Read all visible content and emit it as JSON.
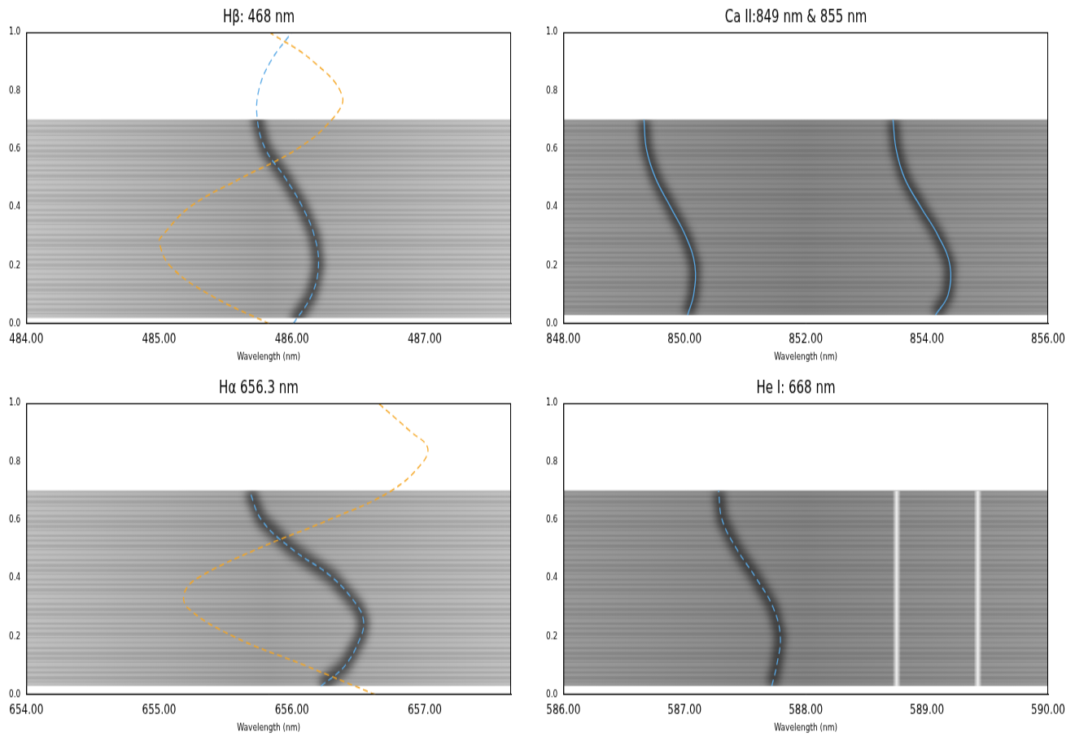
{
  "chart_data": [
    {
      "type": "line",
      "title": "Hβ: 468 nm",
      "x_label": "Wavelength (nm)",
      "xlim": [
        484,
        487.65
      ],
      "ylim": [
        0,
        1
      ],
      "xticks": [
        {
          "value": 484,
          "label": "484.00"
        },
        {
          "value": 485,
          "label": "485.00"
        },
        {
          "value": 486,
          "label": "486.00"
        },
        {
          "value": 487,
          "label": "487.00"
        }
      ],
      "yticks": [
        {
          "value": 0,
          "label": "0.0"
        },
        {
          "value": 0.2,
          "label": "0.2"
        },
        {
          "value": 0.4,
          "label": "0.4"
        },
        {
          "value": 0.6,
          "label": "0.6"
        },
        {
          "value": 0.8,
          "label": "0.8"
        },
        {
          "value": 1,
          "label": "1.0"
        }
      ],
      "grid": false,
      "image_extent": {
        "x": [
          484,
          487.65
        ],
        "y": [
          0.02,
          0.7
        ]
      },
      "series": [
        {
          "color": "#5aa9e6",
          "line_style": "dashed",
          "x": [
            486.01,
            486.15,
            486.2,
            486.17,
            486.08,
            485.95,
            485.8,
            485.74,
            485.75,
            485.84,
            486.0
          ],
          "y": [
            0,
            0.1,
            0.2,
            0.3,
            0.4,
            0.5,
            0.6,
            0.7,
            0.8,
            0.9,
            1
          ]
        },
        {
          "color": "#f5a623",
          "line_style": "dashed",
          "x": [
            485.83,
            485.38,
            485.08,
            485.0,
            485.02,
            485.23,
            485.62,
            486.04,
            486.3,
            486.38,
            486.16,
            485.83
          ],
          "y": [
            0,
            0.1,
            0.2,
            0.28,
            0.3,
            0.4,
            0.5,
            0.6,
            0.7,
            0.78,
            0.9,
            1
          ]
        }
      ]
    },
    {
      "type": "line",
      "title": "Ca II:849 nm & 855 nm",
      "x_label": "Wavelength (nm)",
      "xlim": [
        848,
        856
      ],
      "ylim": [
        0,
        1
      ],
      "xticks": [
        {
          "value": 848,
          "label": "848.00"
        },
        {
          "value": 850,
          "label": "850.00"
        },
        {
          "value": 852,
          "label": "852.00"
        },
        {
          "value": 854,
          "label": "854.00"
        },
        {
          "value": 856,
          "label": "856.00"
        }
      ],
      "yticks": [
        {
          "value": 0,
          "label": "0.0"
        },
        {
          "value": 0.2,
          "label": "0.2"
        },
        {
          "value": 0.4,
          "label": "0.4"
        },
        {
          "value": 0.6,
          "label": "0.6"
        },
        {
          "value": 0.8,
          "label": "0.8"
        },
        {
          "value": 1,
          "label": "1.0"
        }
      ],
      "grid": false,
      "image_extent": {
        "x": [
          848,
          856
        ],
        "y": [
          0.03,
          0.7
        ]
      },
      "series": [
        {
          "color": "#5aa9e6",
          "line_style": "solid",
          "x": [
            850.05,
            850.15,
            850.17,
            850.02,
            849.77,
            849.52,
            849.37,
            849.33
          ],
          "y": [
            0.03,
            0.1,
            0.2,
            0.3,
            0.4,
            0.5,
            0.6,
            0.7
          ]
        },
        {
          "color": "#5aa9e6",
          "line_style": "solid",
          "x": [
            854.14,
            854.35,
            854.38,
            854.19,
            853.9,
            853.63,
            853.49,
            853.44
          ],
          "y": [
            0.03,
            0.1,
            0.2,
            0.3,
            0.4,
            0.5,
            0.6,
            0.7
          ]
        }
      ]
    },
    {
      "type": "line",
      "title": "Hα 656.3 nm",
      "x_label": "Wavelength (nm)",
      "xlim": [
        654,
        657.65
      ],
      "ylim": [
        0,
        1
      ],
      "xticks": [
        {
          "value": 654,
          "label": "654.00"
        },
        {
          "value": 655,
          "label": "655.00"
        },
        {
          "value": 656,
          "label": "656.00"
        },
        {
          "value": 657,
          "label": "657.00"
        }
      ],
      "yticks": [
        {
          "value": 0,
          "label": "0.0"
        },
        {
          "value": 0.2,
          "label": "0.2"
        },
        {
          "value": 0.4,
          "label": "0.4"
        },
        {
          "value": 0.6,
          "label": "0.6"
        },
        {
          "value": 0.8,
          "label": "0.8"
        },
        {
          "value": 1,
          "label": "1.0"
        }
      ],
      "grid": false,
      "image_extent": {
        "x": [
          654,
          657.65
        ],
        "y": [
          0.03,
          0.7
        ]
      },
      "series": [
        {
          "color": "#5aa9e6",
          "line_style": "dashed",
          "x": [
            656.22,
            656.4,
            656.52,
            656.54,
            656.5,
            656.31,
            656.0,
            655.77,
            655.68
          ],
          "y": [
            0.03,
            0.1,
            0.2,
            0.25,
            0.3,
            0.4,
            0.5,
            0.6,
            0.7
          ]
        },
        {
          "color": "#f5a623",
          "line_style": "dashed",
          "x": [
            656.63,
            656.1,
            655.56,
            655.21,
            655.19,
            655.29,
            655.74,
            656.28,
            656.75,
            656.99,
            657.02,
            656.9,
            656.65
          ],
          "y": [
            0,
            0.1,
            0.2,
            0.3,
            0.35,
            0.4,
            0.5,
            0.6,
            0.7,
            0.8,
            0.85,
            0.9,
            1
          ]
        }
      ]
    },
    {
      "type": "line",
      "title": "He I: 668 nm",
      "x_label": "Wavelength (nm)",
      "xlim": [
        586,
        590
      ],
      "ylim": [
        0,
        1
      ],
      "xticks": [
        {
          "value": 586,
          "label": "586.00"
        },
        {
          "value": 587,
          "label": "587.00"
        },
        {
          "value": 588,
          "label": "588.00"
        },
        {
          "value": 589,
          "label": "589.00"
        },
        {
          "value": 590,
          "label": "590.00"
        }
      ],
      "yticks": [
        {
          "value": 0,
          "label": "0.0"
        },
        {
          "value": 0.2,
          "label": "0.2"
        },
        {
          "value": 0.4,
          "label": "0.4"
        },
        {
          "value": 0.6,
          "label": "0.6"
        },
        {
          "value": 0.8,
          "label": "0.8"
        },
        {
          "value": 1,
          "label": "1.0"
        }
      ],
      "grid": false,
      "image_extent": {
        "x": [
          586,
          590
        ],
        "y": [
          0.03,
          0.7
        ]
      },
      "bright_lines": [
        588.75,
        589.42
      ],
      "series": [
        {
          "color": "#5aa9e6",
          "line_style": "dashed",
          "x": [
            587.72,
            587.76,
            587.79,
            587.73,
            587.59,
            587.43,
            587.31,
            587.28
          ],
          "y": [
            0.03,
            0.1,
            0.2,
            0.3,
            0.4,
            0.5,
            0.6,
            0.7
          ]
        }
      ]
    }
  ]
}
